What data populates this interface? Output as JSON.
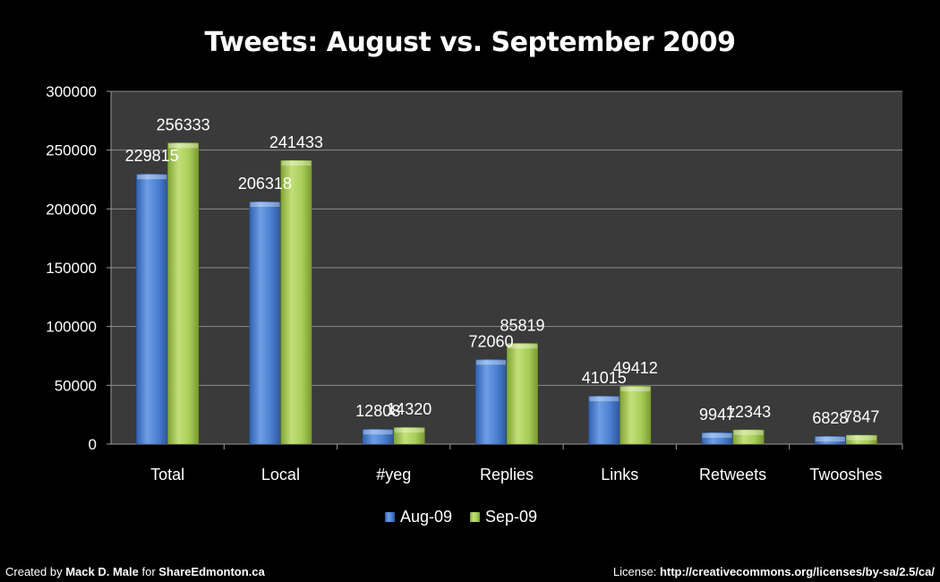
{
  "chart_data": {
    "type": "bar",
    "title": "Tweets: August vs. September 2009",
    "xlabel": "",
    "ylabel": "",
    "categories": [
      "Total",
      "Local",
      "#yeg",
      "Replies",
      "Links",
      "Retweets",
      "Twooshes"
    ],
    "series": [
      {
        "name": "Aug-09",
        "values": [
          229815,
          206318,
          12808,
          72060,
          41015,
          9947,
          6828
        ],
        "color": "#4a7fd0"
      },
      {
        "name": "Sep-09",
        "values": [
          256333,
          241433,
          14320,
          85819,
          49412,
          12343,
          7847
        ],
        "color": "#a7cc56"
      }
    ],
    "ylim": [
      0,
      300000
    ],
    "yticks": [
      0,
      50000,
      100000,
      150000,
      200000,
      250000,
      300000
    ],
    "grid": true,
    "legend": "bottom",
    "background": "#3a3a3a"
  },
  "footer": {
    "left_prefix": "Created by ",
    "left_author": "Mack D. Male",
    "left_mid": " for ",
    "left_site": "ShareEdmonton.ca",
    "right_prefix": "License: ",
    "right_url": "http://creativecommons.org/licenses/by-sa/2.5/ca/"
  }
}
